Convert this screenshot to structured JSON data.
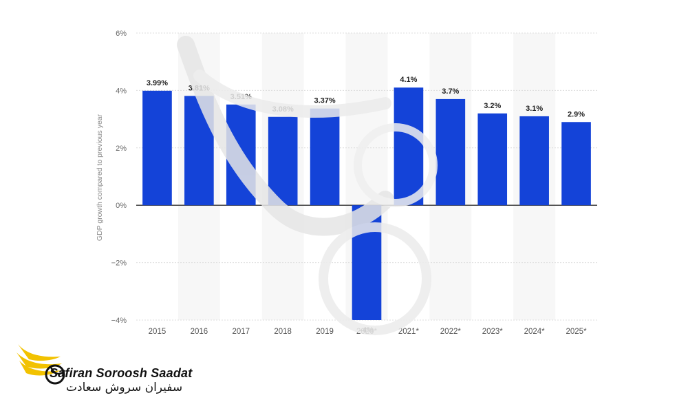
{
  "chart_data": {
    "type": "bar",
    "categories": [
      "2015",
      "2016",
      "2017",
      "2018",
      "2019",
      "2020*",
      "2021*",
      "2022*",
      "2023*",
      "2024*",
      "2025*"
    ],
    "values": [
      3.99,
      3.81,
      3.51,
      3.08,
      3.37,
      -4.0,
      4.1,
      3.7,
      3.2,
      3.1,
      2.9
    ],
    "data_labels": [
      "3.99%",
      "3.81%",
      "3.51%",
      "3.08%",
      "3.37%",
      "-4%",
      "4.1%",
      "3.7%",
      "3.2%",
      "3.1%",
      "2.9%"
    ],
    "ylabel": "GDP growth compared to previous year",
    "yticks": [
      6,
      4,
      2,
      0,
      -2,
      -4
    ],
    "ytick_labels": [
      "6%",
      "4%",
      "2%",
      "0%",
      "−2%",
      "−4%"
    ],
    "ylim": [
      -4,
      6
    ],
    "grid": true,
    "bar_color": "#1443d8",
    "alt_band_color": "#f7f7f7"
  },
  "watermark": {
    "brand_en": "Safiran Soroosh Saadat",
    "brand_fa": "سفیران سروش سعادت",
    "accent_color": "#f2c200"
  }
}
